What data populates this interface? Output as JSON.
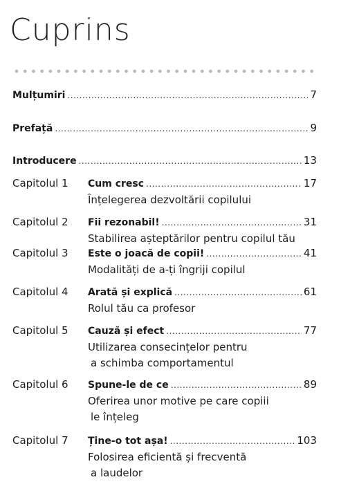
{
  "page": {
    "title": "Cuprins"
  },
  "front": [
    {
      "title": "Mulțumiri",
      "page": "7"
    },
    {
      "title": "Prefață",
      "page": "9"
    },
    {
      "title": "Introducere",
      "page": "13"
    }
  ],
  "chapters": [
    {
      "label": "Capitolul 1",
      "title": "Cum cresc",
      "page": "17",
      "subtitle": [
        "Înțelegerea dezvoltării copilului"
      ]
    },
    {
      "label": "Capitolul 2",
      "title": "Fii rezonabil!",
      "page": "31",
      "subtitle": [
        "Stabilirea așteptărilor pentru copilul tău"
      ]
    },
    {
      "label": "Capitolul 3",
      "title": "Este o joacă de copii!",
      "page": "41",
      "subtitle": [
        "Modalități de a-ți îngriji copilul"
      ]
    },
    {
      "label": "Capitolul 4",
      "title": "Arată și explică",
      "page": "61",
      "subtitle": [
        "Rolul tău ca profesor"
      ]
    },
    {
      "label": "Capitolul 5",
      "title": "Cauză și efect",
      "page": "77",
      "subtitle": [
        "Utilizarea consecințelor pentru",
        "a schimba comportamentul"
      ]
    },
    {
      "label": "Capitolul 6",
      "title": "Spune-le de ce",
      "page": "89",
      "subtitle": [
        "Oferirea unor motive pe care copiii",
        "le înțeleg"
      ]
    },
    {
      "label": "Capitolul 7",
      "title": "Ține-o tot așa!",
      "page": "103",
      "subtitle": [
        "Folosirea eficientă și frecventă",
        "a laudelor"
      ]
    }
  ]
}
